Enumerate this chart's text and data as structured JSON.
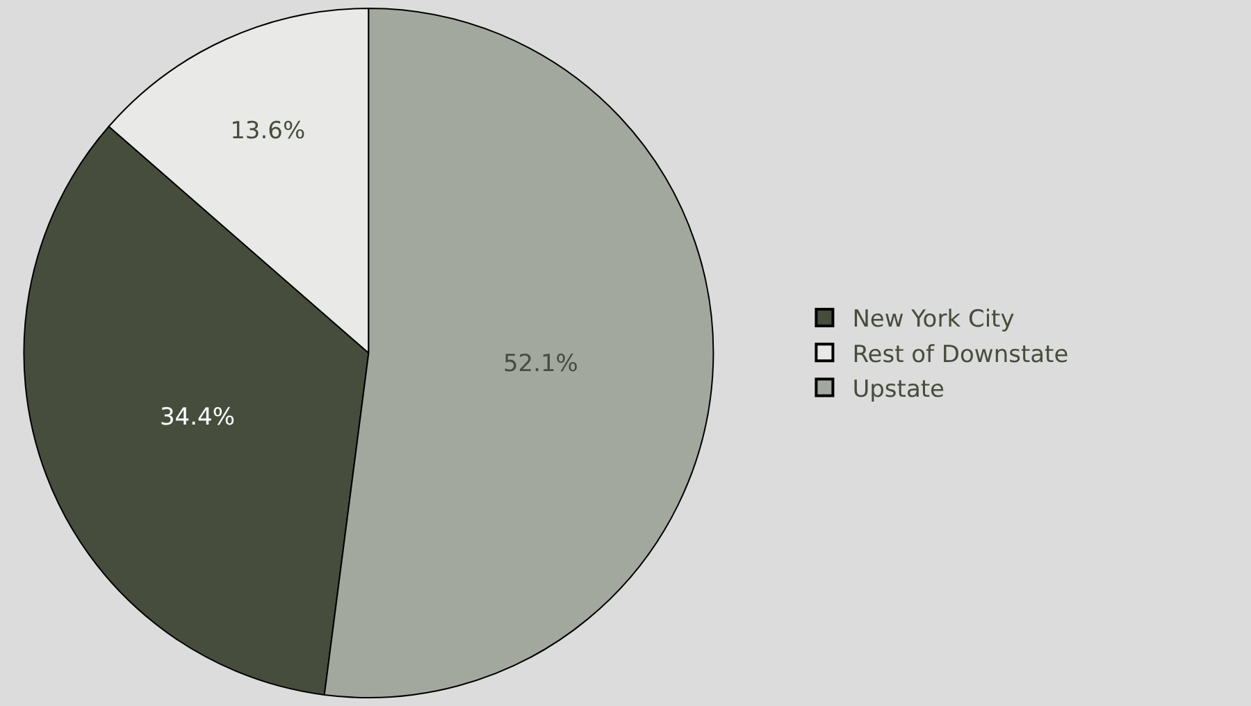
{
  "chart_data": {
    "type": "pie",
    "categories": [
      "New York City",
      "Rest of Downstate",
      "Upstate"
    ],
    "values": [
      34.4,
      13.6,
      52.1
    ],
    "colors": [
      "#464d3d",
      "#e9e9e7",
      "#a3a89e"
    ],
    "value_labels": [
      "34.4%",
      "13.6%",
      "52.1%"
    ],
    "legend": "right"
  }
}
